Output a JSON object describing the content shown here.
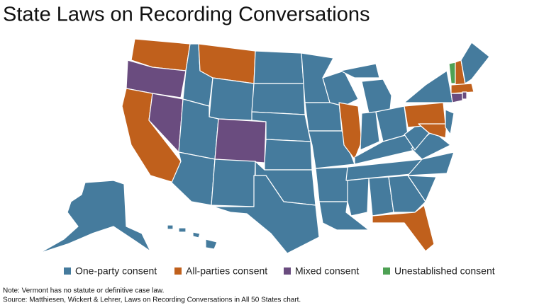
{
  "title": "State Laws on Recording Conversations",
  "legend": [
    {
      "label": "One-party consent",
      "color": "#457b9d"
    },
    {
      "label": "All-parties consent",
      "color": "#c0601c"
    },
    {
      "label": "Mixed consent",
      "color": "#6a4c7f"
    },
    {
      "label": "Unestablished consent",
      "color": "#4ea154"
    }
  ],
  "notes": [
    "Note: Vermont has no statute or definitive case law.",
    "Source: Matthiesen, Wickert & Lehrer, Laws on Recording Conversations in All 50 States chart."
  ]
}
